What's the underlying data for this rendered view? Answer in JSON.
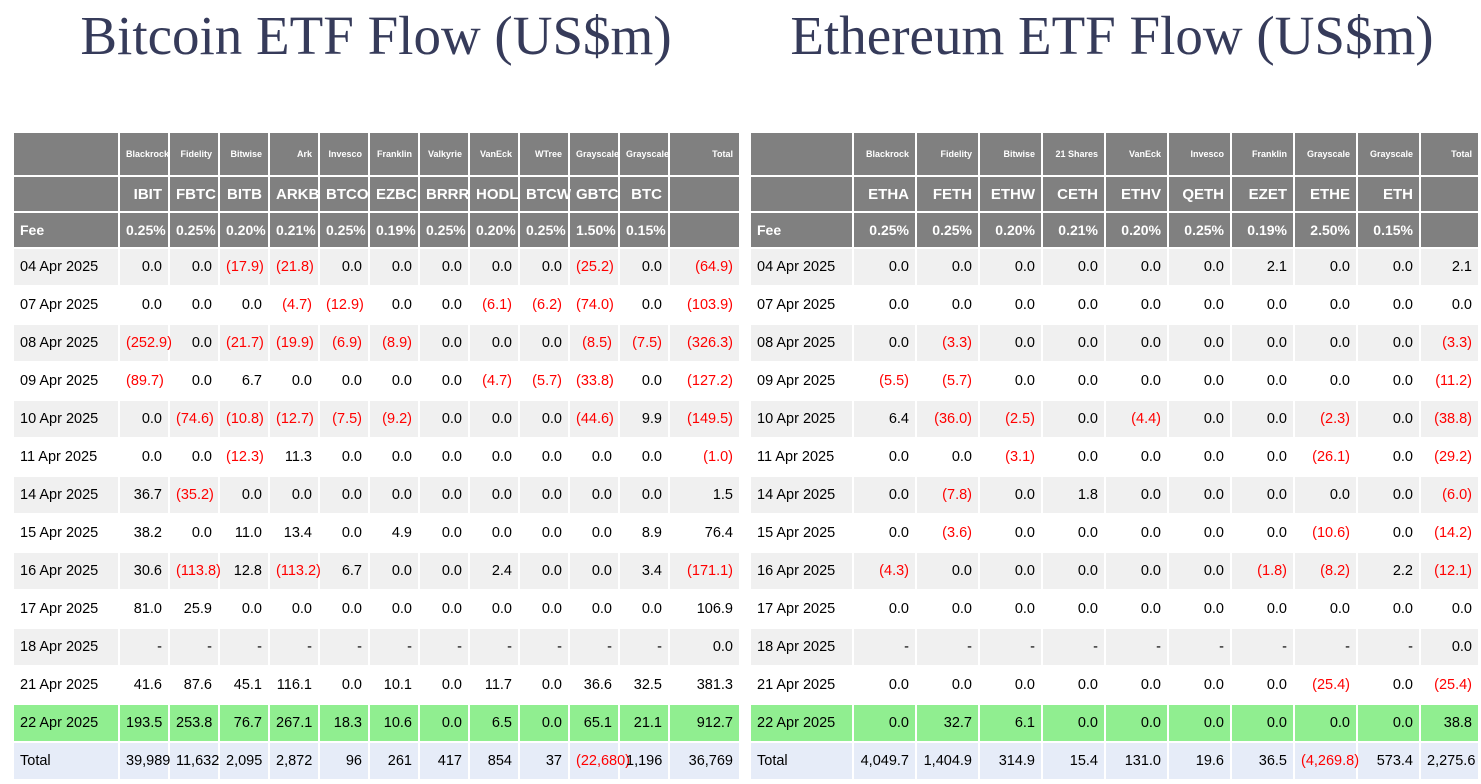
{
  "colors": {
    "title": "#363b5a",
    "header_bg": "#808080",
    "stripe_bg": "#f0f0f0",
    "highlight_bg": "#90ee90",
    "total_bg": "#e6ecf8",
    "negative": "#ff0000"
  },
  "bitcoin": {
    "title": "Bitcoin ETF Flow (US$m)",
    "total_label": "Total",
    "fee_label": "Fee",
    "providers": [
      "Blackrock",
      "Fidelity",
      "Bitwise",
      "Ark",
      "Invesco",
      "Franklin",
      "Valkyrie",
      "VanEck",
      "WTree",
      "Grayscale",
      "Grayscale"
    ],
    "tickers": [
      "IBIT",
      "FBTC",
      "BITB",
      "ARKB",
      "BTCO",
      "EZBC",
      "BRRR",
      "HODL",
      "BTCW",
      "GBTC",
      "BTC"
    ],
    "fees": [
      "0.25%",
      "0.25%",
      "0.20%",
      "0.21%",
      "0.25%",
      "0.19%",
      "0.25%",
      "0.20%",
      "0.25%",
      "1.50%",
      "0.15%"
    ],
    "rows": [
      {
        "date": "04 Apr 2025",
        "values": [
          "0.0",
          "0.0",
          "(17.9)",
          "(21.8)",
          "0.0",
          "0.0",
          "0.0",
          "0.0",
          "0.0",
          "(25.2)",
          "0.0",
          "(64.9)"
        ]
      },
      {
        "date": "07 Apr 2025",
        "values": [
          "0.0",
          "0.0",
          "0.0",
          "(4.7)",
          "(12.9)",
          "0.0",
          "0.0",
          "(6.1)",
          "(6.2)",
          "(74.0)",
          "0.0",
          "(103.9)"
        ]
      },
      {
        "date": "08 Apr 2025",
        "values": [
          "(252.9)",
          "0.0",
          "(21.7)",
          "(19.9)",
          "(6.9)",
          "(8.9)",
          "0.0",
          "0.0",
          "0.0",
          "(8.5)",
          "(7.5)",
          "(326.3)"
        ]
      },
      {
        "date": "09 Apr 2025",
        "values": [
          "(89.7)",
          "0.0",
          "6.7",
          "0.0",
          "0.0",
          "0.0",
          "0.0",
          "(4.7)",
          "(5.7)",
          "(33.8)",
          "0.0",
          "(127.2)"
        ]
      },
      {
        "date": "10 Apr 2025",
        "values": [
          "0.0",
          "(74.6)",
          "(10.8)",
          "(12.7)",
          "(7.5)",
          "(9.2)",
          "0.0",
          "0.0",
          "0.0",
          "(44.6)",
          "9.9",
          "(149.5)"
        ]
      },
      {
        "date": "11 Apr 2025",
        "values": [
          "0.0",
          "0.0",
          "(12.3)",
          "11.3",
          "0.0",
          "0.0",
          "0.0",
          "0.0",
          "0.0",
          "0.0",
          "0.0",
          "(1.0)"
        ]
      },
      {
        "date": "14 Apr 2025",
        "values": [
          "36.7",
          "(35.2)",
          "0.0",
          "0.0",
          "0.0",
          "0.0",
          "0.0",
          "0.0",
          "0.0",
          "0.0",
          "0.0",
          "1.5"
        ]
      },
      {
        "date": "15 Apr 2025",
        "values": [
          "38.2",
          "0.0",
          "11.0",
          "13.4",
          "0.0",
          "4.9",
          "0.0",
          "0.0",
          "0.0",
          "0.0",
          "8.9",
          "76.4"
        ]
      },
      {
        "date": "16 Apr 2025",
        "values": [
          "30.6",
          "(113.8)",
          "12.8",
          "(113.2)",
          "6.7",
          "0.0",
          "0.0",
          "2.4",
          "0.0",
          "0.0",
          "3.4",
          "(171.1)"
        ]
      },
      {
        "date": "17 Apr 2025",
        "values": [
          "81.0",
          "25.9",
          "0.0",
          "0.0",
          "0.0",
          "0.0",
          "0.0",
          "0.0",
          "0.0",
          "0.0",
          "0.0",
          "106.9"
        ]
      },
      {
        "date": "18 Apr 2025",
        "values": [
          "-",
          "-",
          "-",
          "-",
          "-",
          "-",
          "-",
          "-",
          "-",
          "-",
          "-",
          "0.0"
        ]
      },
      {
        "date": "21 Apr 2025",
        "values": [
          "41.6",
          "87.6",
          "45.1",
          "116.1",
          "0.0",
          "10.1",
          "0.0",
          "11.7",
          "0.0",
          "36.6",
          "32.5",
          "381.3"
        ]
      },
      {
        "date": "22 Apr 2025",
        "highlight": true,
        "values": [
          "193.5",
          "253.8",
          "76.7",
          "267.1",
          "18.3",
          "10.6",
          "0.0",
          "6.5",
          "0.0",
          "65.1",
          "21.1",
          "912.7"
        ]
      }
    ],
    "total_row": {
      "label": "Total",
      "values": [
        "39,989",
        "11,632",
        "2,095",
        "2,872",
        "96",
        "261",
        "417",
        "854",
        "37",
        "(22,680)",
        "1,196",
        "36,769"
      ]
    }
  },
  "ethereum": {
    "title": "Ethereum ETF Flow (US$m)",
    "total_label": "Total",
    "fee_label": "Fee",
    "providers": [
      "Blackrock",
      "Fidelity",
      "Bitwise",
      "21 Shares",
      "VanEck",
      "Invesco",
      "Franklin",
      "Grayscale",
      "Grayscale"
    ],
    "tickers": [
      "ETHA",
      "FETH",
      "ETHW",
      "CETH",
      "ETHV",
      "QETH",
      "EZET",
      "ETHE",
      "ETH"
    ],
    "fees": [
      "0.25%",
      "0.25%",
      "0.20%",
      "0.21%",
      "0.20%",
      "0.25%",
      "0.19%",
      "2.50%",
      "0.15%"
    ],
    "rows": [
      {
        "date": "04 Apr 2025",
        "values": [
          "0.0",
          "0.0",
          "0.0",
          "0.0",
          "0.0",
          "0.0",
          "2.1",
          "0.0",
          "0.0",
          "2.1"
        ]
      },
      {
        "date": "07 Apr 2025",
        "values": [
          "0.0",
          "0.0",
          "0.0",
          "0.0",
          "0.0",
          "0.0",
          "0.0",
          "0.0",
          "0.0",
          "0.0"
        ]
      },
      {
        "date": "08 Apr 2025",
        "values": [
          "0.0",
          "(3.3)",
          "0.0",
          "0.0",
          "0.0",
          "0.0",
          "0.0",
          "0.0",
          "0.0",
          "(3.3)"
        ]
      },
      {
        "date": "09 Apr 2025",
        "values": [
          "(5.5)",
          "(5.7)",
          "0.0",
          "0.0",
          "0.0",
          "0.0",
          "0.0",
          "0.0",
          "0.0",
          "(11.2)"
        ]
      },
      {
        "date": "10 Apr 2025",
        "values": [
          "6.4",
          "(36.0)",
          "(2.5)",
          "0.0",
          "(4.4)",
          "0.0",
          "0.0",
          "(2.3)",
          "0.0",
          "(38.8)"
        ]
      },
      {
        "date": "11 Apr 2025",
        "values": [
          "0.0",
          "0.0",
          "(3.1)",
          "0.0",
          "0.0",
          "0.0",
          "0.0",
          "(26.1)",
          "0.0",
          "(29.2)"
        ]
      },
      {
        "date": "14 Apr 2025",
        "values": [
          "0.0",
          "(7.8)",
          "0.0",
          "1.8",
          "0.0",
          "0.0",
          "0.0",
          "0.0",
          "0.0",
          "(6.0)"
        ]
      },
      {
        "date": "15 Apr 2025",
        "values": [
          "0.0",
          "(3.6)",
          "0.0",
          "0.0",
          "0.0",
          "0.0",
          "0.0",
          "(10.6)",
          "0.0",
          "(14.2)"
        ]
      },
      {
        "date": "16 Apr 2025",
        "values": [
          "(4.3)",
          "0.0",
          "0.0",
          "0.0",
          "0.0",
          "0.0",
          "(1.8)",
          "(8.2)",
          "2.2",
          "(12.1)"
        ]
      },
      {
        "date": "17 Apr 2025",
        "values": [
          "0.0",
          "0.0",
          "0.0",
          "0.0",
          "0.0",
          "0.0",
          "0.0",
          "0.0",
          "0.0",
          "0.0"
        ]
      },
      {
        "date": "18 Apr 2025",
        "values": [
          "-",
          "-",
          "-",
          "-",
          "-",
          "-",
          "-",
          "-",
          "-",
          "0.0"
        ]
      },
      {
        "date": "21 Apr 2025",
        "values": [
          "0.0",
          "0.0",
          "0.0",
          "0.0",
          "0.0",
          "0.0",
          "0.0",
          "(25.4)",
          "0.0",
          "(25.4)"
        ]
      },
      {
        "date": "22 Apr 2025",
        "highlight": true,
        "values": [
          "0.0",
          "32.7",
          "6.1",
          "0.0",
          "0.0",
          "0.0",
          "0.0",
          "0.0",
          "0.0",
          "38.8"
        ]
      }
    ],
    "total_row": {
      "label": "Total",
      "values": [
        "4,049.7",
        "1,404.9",
        "314.9",
        "15.4",
        "131.0",
        "19.6",
        "36.5",
        "(4,269.8)",
        "573.4",
        "2,275.6"
      ]
    }
  }
}
